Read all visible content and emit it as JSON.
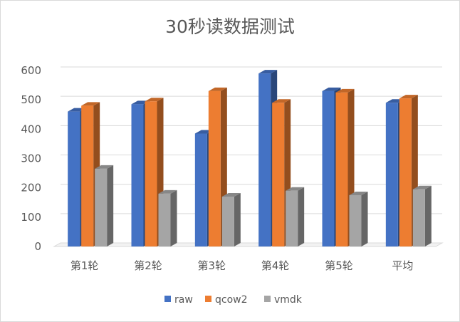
{
  "chart_data": {
    "type": "bar",
    "style": "3d-clustered-column",
    "title": "30秒读数据测试",
    "categories": [
      "第1轮",
      "第2轮",
      "第3轮",
      "第4轮",
      "第5轮",
      "平均"
    ],
    "series": [
      {
        "name": "raw",
        "color": "#4472C4",
        "values": [
          460,
          485,
          385,
          590,
          530,
          490
        ]
      },
      {
        "name": "qcow2",
        "color": "#ED7D31",
        "values": [
          480,
          495,
          530,
          490,
          525,
          505
        ]
      },
      {
        "name": "vmdk",
        "color": "#A5A5A5",
        "values": [
          265,
          180,
          170,
          190,
          175,
          195
        ]
      }
    ],
    "ylim": [
      0,
      600
    ],
    "yticks": [
      0,
      100,
      200,
      300,
      400,
      500,
      600
    ],
    "grid": true,
    "legend": "bottom"
  }
}
